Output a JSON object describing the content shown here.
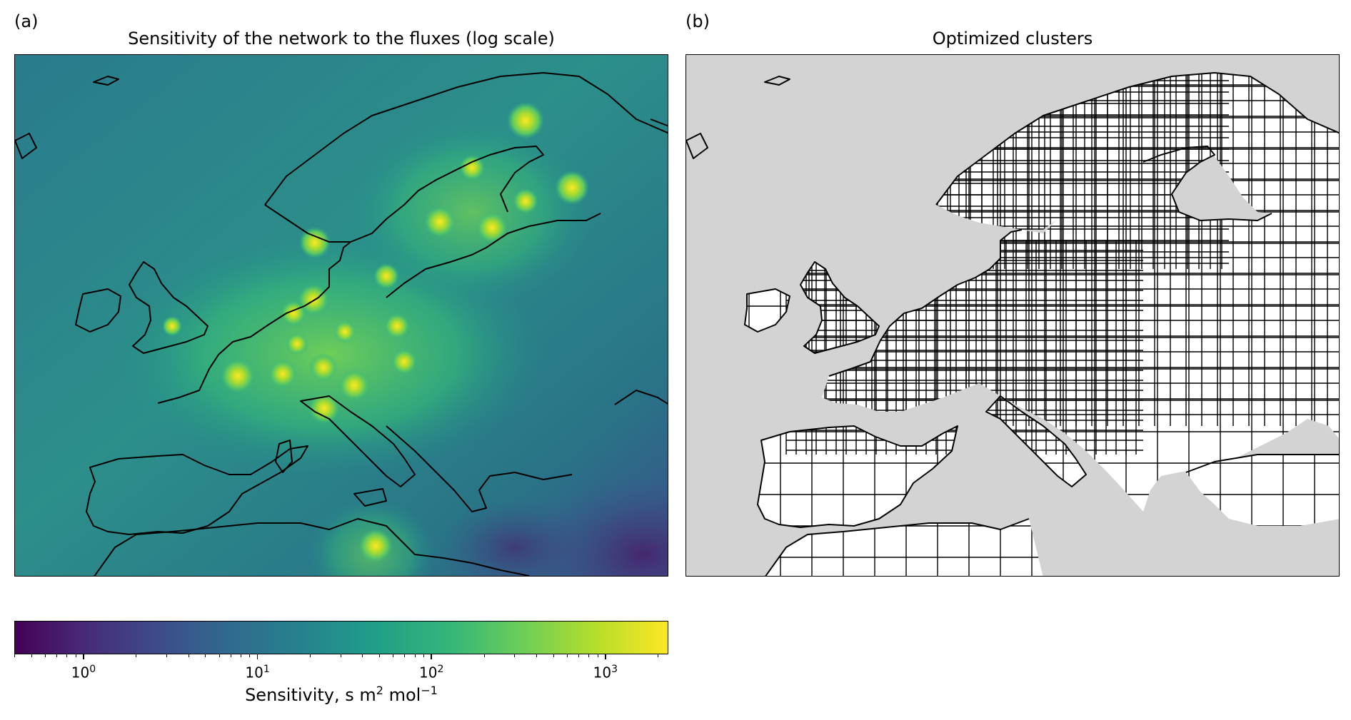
{
  "panel_a": {
    "label": "(a)",
    "title": "Sensitivity of the network to the fluxes (log scale)"
  },
  "panel_b": {
    "label": "(b)",
    "title": "Optimized clusters"
  },
  "colorbar": {
    "colormap": "viridis",
    "scale": "log",
    "range": [
      0.4,
      2300
    ],
    "ticks": [
      {
        "base": "10",
        "exp": "0",
        "value": 1
      },
      {
        "base": "10",
        "exp": "1",
        "value": 10
      },
      {
        "base": "10",
        "exp": "2",
        "value": 100
      },
      {
        "base": "10",
        "exp": "3",
        "value": 1000
      }
    ],
    "label_main": "Sensitivity, s m",
    "label_exp1": "2",
    "label_mid": " mol",
    "label_exp2": "−1"
  },
  "colors": {
    "ocean_grey": "#d3d3d3",
    "land_white": "#ffffff",
    "coast": "#000000",
    "viridis_low": "#440154",
    "viridis_high": "#fde725"
  }
}
